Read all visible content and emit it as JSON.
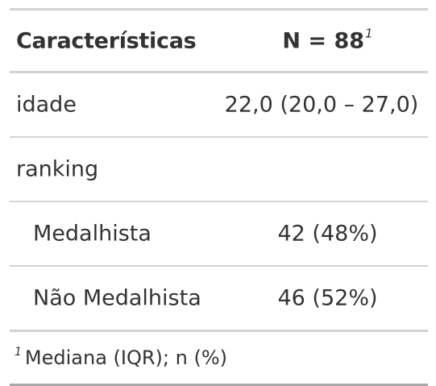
{
  "table": {
    "header": {
      "label": "Características",
      "n_label": "N = 88",
      "n_footnote_mark": "1"
    },
    "rows": [
      {
        "label": "idade",
        "value": "22,0 (20,0 – 27,0)"
      },
      {
        "label": "ranking",
        "value": ""
      },
      {
        "label": "Medalhista",
        "value": "42 (48%)"
      },
      {
        "label": "Não Medalhista",
        "value": "46 (52%)"
      }
    ],
    "footnote": {
      "mark": "1",
      "text": "Mediana (IQR); n (%)"
    }
  }
}
